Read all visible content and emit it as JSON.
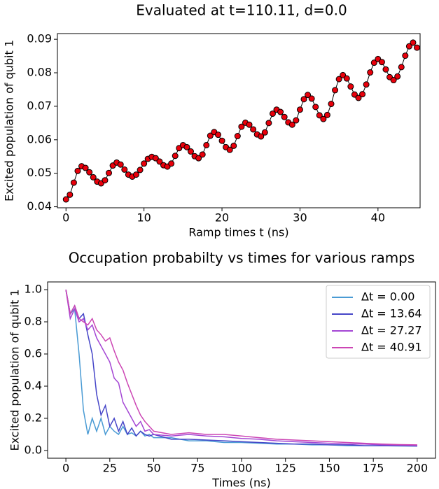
{
  "chart_data": [
    {
      "type": "line",
      "title": "Evaluated at t=110.11, d=0.0",
      "xlabel": "Ramp times t (ns)",
      "ylabel": "Excited population of qubit 1",
      "x": [
        0,
        0.5,
        1,
        1.5,
        2,
        2.5,
        3,
        3.5,
        4,
        4.5,
        5,
        5.5,
        6,
        6.5,
        7,
        7.5,
        8,
        8.5,
        9,
        9.5,
        10,
        10.5,
        11,
        11.5,
        12,
        12.5,
        13,
        13.5,
        14,
        14.5,
        15,
        15.5,
        16,
        16.5,
        17,
        17.5,
        18,
        18.5,
        19,
        19.5,
        20,
        20.5,
        21,
        21.5,
        22,
        22.5,
        23,
        23.5,
        24,
        24.5,
        25,
        25.5,
        26,
        26.5,
        27,
        27.5,
        28,
        28.5,
        29,
        29.5,
        30,
        30.5,
        31,
        31.5,
        32,
        32.5,
        33,
        33.5,
        34,
        34.5,
        35,
        35.5,
        36,
        36.5,
        37,
        37.5,
        38,
        38.5,
        39,
        39.5,
        40,
        40.5,
        41,
        41.5,
        42,
        42.5,
        43,
        43.5,
        44,
        44.5,
        45
      ],
      "values": [
        0.0422,
        0.0436,
        0.0472,
        0.0507,
        0.0521,
        0.0516,
        0.0503,
        0.0488,
        0.0475,
        0.047,
        0.0479,
        0.0501,
        0.0523,
        0.0532,
        0.0526,
        0.0511,
        0.0496,
        0.049,
        0.0496,
        0.051,
        0.0529,
        0.0543,
        0.0549,
        0.0545,
        0.0535,
        0.0524,
        0.052,
        0.0529,
        0.0552,
        0.0575,
        0.0584,
        0.0578,
        0.0565,
        0.0551,
        0.0545,
        0.0556,
        0.0584,
        0.0612,
        0.0623,
        0.0615,
        0.0597,
        0.0578,
        0.057,
        0.0582,
        0.0611,
        0.0639,
        0.0651,
        0.0645,
        0.0631,
        0.0616,
        0.061,
        0.0622,
        0.065,
        0.0678,
        0.069,
        0.0683,
        0.0668,
        0.0652,
        0.0645,
        0.0658,
        0.069,
        0.0721,
        0.0734,
        0.0723,
        0.0698,
        0.0673,
        0.0662,
        0.0674,
        0.0707,
        0.0748,
        0.0781,
        0.0793,
        0.0783,
        0.0759,
        0.0735,
        0.0725,
        0.0736,
        0.0765,
        0.0801,
        0.083,
        0.0841,
        0.0832,
        0.081,
        0.0787,
        0.0778,
        0.0789,
        0.0817,
        0.0851,
        0.0879,
        0.089,
        0.0875
      ],
      "color": "#000000",
      "markers": true,
      "marker_color": "#e8000b",
      "xlim": [
        -1.1,
        45.4
      ],
      "ylim": [
        0.0397,
        0.0917
      ],
      "xticks": [
        0,
        10,
        20,
        30,
        40
      ],
      "yticks": [
        0.04,
        0.05,
        0.06,
        0.07,
        0.08,
        0.09
      ],
      "grid": false
    },
    {
      "type": "line",
      "title": "Occupation probabilty vs times for various ramps",
      "xlabel": "Times (ns)",
      "ylabel": "Excited population of qubit 1",
      "x": [
        0,
        2.5,
        5,
        7.5,
        10,
        12.5,
        15,
        17.5,
        20,
        22.5,
        25,
        27.5,
        30,
        32.5,
        35,
        37.5,
        40,
        42.5,
        45,
        47.5,
        50,
        60,
        70,
        80,
        90,
        100,
        110,
        120,
        130,
        140,
        150,
        160,
        170,
        180,
        190,
        200
      ],
      "series": [
        {
          "name": "Δt =  0.00",
          "color": "#4a9bd4",
          "values": [
            1.0,
            0.85,
            0.88,
            0.6,
            0.25,
            0.1,
            0.2,
            0.12,
            0.2,
            0.1,
            0.15,
            0.12,
            0.1,
            0.15,
            0.1,
            0.11,
            0.09,
            0.12,
            0.09,
            0.1,
            0.08,
            0.08,
            0.06,
            0.06,
            0.05,
            0.05,
            0.045,
            0.04,
            0.04,
            0.035,
            0.035,
            0.03,
            0.03,
            0.03,
            0.028,
            0.027
          ]
        },
        {
          "name": "Δt =  13.64",
          "color": "#4646c8",
          "values": [
            1.0,
            0.85,
            0.9,
            0.82,
            0.85,
            0.72,
            0.6,
            0.35,
            0.22,
            0.28,
            0.15,
            0.2,
            0.12,
            0.18,
            0.1,
            0.14,
            0.09,
            0.12,
            0.1,
            0.09,
            0.1,
            0.07,
            0.07,
            0.065,
            0.06,
            0.055,
            0.05,
            0.045,
            0.04,
            0.04,
            0.035,
            0.035,
            0.03,
            0.03,
            0.03,
            0.028
          ]
        },
        {
          "name": "Δt =  27.27",
          "color": "#a446d4",
          "values": [
            1.0,
            0.82,
            0.88,
            0.8,
            0.82,
            0.75,
            0.78,
            0.7,
            0.65,
            0.6,
            0.55,
            0.45,
            0.42,
            0.3,
            0.25,
            0.2,
            0.15,
            0.18,
            0.12,
            0.13,
            0.1,
            0.09,
            0.1,
            0.09,
            0.085,
            0.075,
            0.07,
            0.06,
            0.055,
            0.05,
            0.045,
            0.04,
            0.04,
            0.035,
            0.033,
            0.031
          ]
        },
        {
          "name": "Δt =  40.91",
          "color": "#cc46b4",
          "values": [
            1.0,
            0.85,
            0.9,
            0.82,
            0.8,
            0.78,
            0.82,
            0.75,
            0.72,
            0.68,
            0.7,
            0.62,
            0.55,
            0.5,
            0.42,
            0.35,
            0.28,
            0.22,
            0.18,
            0.15,
            0.12,
            0.1,
            0.11,
            0.1,
            0.1,
            0.09,
            0.08,
            0.07,
            0.065,
            0.06,
            0.055,
            0.05,
            0.045,
            0.04,
            0.037,
            0.035
          ]
        }
      ],
      "legend": "upper right",
      "xlim": [
        -10.4,
        210.4
      ],
      "ylim": [
        -0.048,
        1.048
      ],
      "xticks": [
        0,
        25,
        50,
        75,
        100,
        125,
        150,
        175,
        200
      ],
      "yticks": [
        {
          "value": 0,
          "label": "0.0"
        },
        0.2,
        0.4,
        0.6,
        0.8,
        {
          "value": 1,
          "label": "1.0"
        }
      ],
      "grid": false
    }
  ]
}
